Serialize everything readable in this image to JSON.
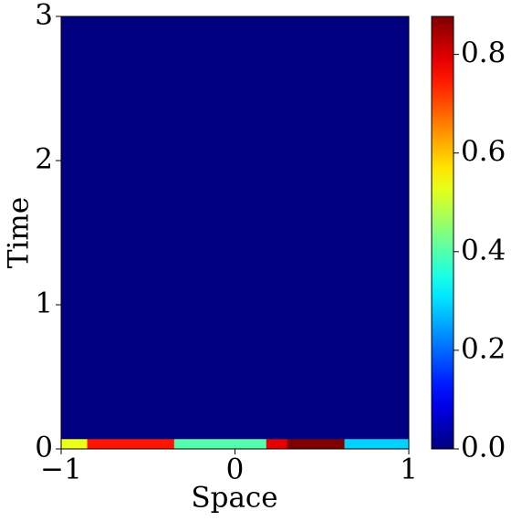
{
  "chart_data": {
    "type": "heatmap",
    "x_label": "Space",
    "y_label": "Time",
    "x_bins": [
      -1,
      -0.85,
      -0.35,
      0.18,
      0.3,
      0.63,
      1
    ],
    "y_bins": [
      0,
      0.07,
      3
    ],
    "z": [
      [
        0.53,
        0.75,
        0.4,
        0.79,
        0.877,
        0.29
      ],
      [
        0,
        0,
        0,
        0,
        0,
        0
      ]
    ],
    "xlim": [
      -1,
      1
    ],
    "ylim": [
      0,
      3
    ],
    "xticks": [
      {
        "value": -1,
        "label": "−1"
      },
      0,
      1
    ],
    "yticks": [
      0,
      1,
      2,
      3
    ],
    "colormap": "jet",
    "clim": [
      0,
      0.877
    ],
    "cticks": [
      {
        "value": 0,
        "label": "0.0"
      },
      {
        "value": 0.2,
        "label": "0.2"
      },
      {
        "value": 0.4,
        "label": "0.4"
      },
      {
        "value": 0.6,
        "label": "0.6"
      },
      {
        "value": 0.8,
        "label": "0.8"
      }
    ]
  }
}
